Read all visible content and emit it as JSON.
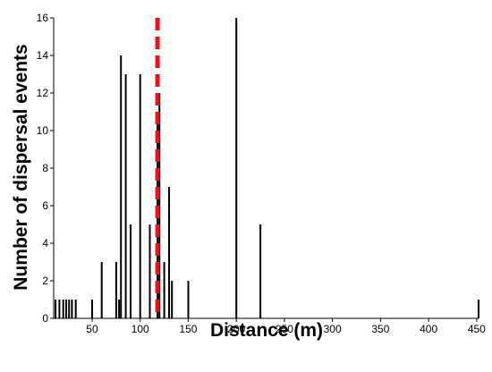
{
  "chart_data": {
    "type": "bar",
    "xlabel": "Distance (m)",
    "ylabel": "Number of dispersal events",
    "xlim": [
      10,
      452
    ],
    "ylim": [
      0,
      16
    ],
    "xticks": [
      "50",
      "100",
      "150",
      "200",
      "250",
      "300",
      "350",
      "400",
      "450"
    ],
    "yticks": [
      "0",
      "2",
      "4",
      "6",
      "8",
      "10",
      "12",
      "14",
      "16"
    ],
    "bar_color": "#000000",
    "threshold_color": "#e8121c",
    "threshold_x": 118,
    "threshold_style": "dashed",
    "grid": false,
    "legend": "none",
    "x": [
      12,
      16,
      20,
      23,
      26,
      29,
      33,
      50,
      60,
      75,
      78,
      80,
      85,
      90,
      100,
      110,
      118,
      120,
      125,
      130,
      133,
      150,
      200,
      225,
      452
    ],
    "values": [
      1,
      1,
      1,
      1,
      1,
      1,
      1,
      1,
      3,
      3,
      1,
      14,
      13,
      5,
      13,
      5,
      11,
      12,
      3,
      7,
      2,
      2,
      16,
      5,
      1
    ]
  }
}
